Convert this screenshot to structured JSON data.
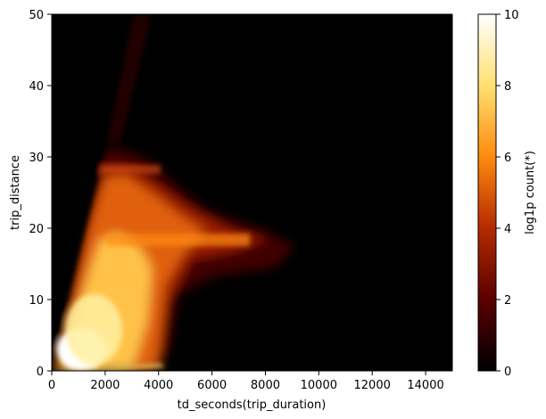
{
  "chart_data": {
    "type": "heatmap",
    "title": "",
    "xlabel": "td_seconds(trip_duration)",
    "ylabel": "trip_distance",
    "xlim": [
      0,
      15000
    ],
    "ylim": [
      0,
      50
    ],
    "x_ticks": [
      0,
      2000,
      4000,
      6000,
      8000,
      10000,
      12000,
      14000
    ],
    "y_ticks": [
      0,
      10,
      20,
      30,
      40,
      50
    ],
    "colorbar": {
      "label": "log1p count(*)",
      "range": [
        0,
        10
      ],
      "ticks": [
        0,
        2,
        4,
        6,
        8,
        10
      ],
      "colormap": "afmhot",
      "colors": [
        "#000000",
        "#5a0000",
        "#b42a00",
        "#ff8a10",
        "#ffe070",
        "#ffffff"
      ]
    },
    "grid": false,
    "density_description_points": [
      {
        "x": 1000,
        "y": 3,
        "value": 9.8
      },
      {
        "x": 2000,
        "y": 10,
        "value": 7.5
      },
      {
        "x": 2500,
        "y": 18,
        "value": 6.2
      },
      {
        "x": 3000,
        "y": 28,
        "value": 4.8
      },
      {
        "x": 6000,
        "y": 18,
        "value": 4.0
      },
      {
        "x": 8000,
        "y": 18,
        "value": 2.0
      }
    ]
  }
}
